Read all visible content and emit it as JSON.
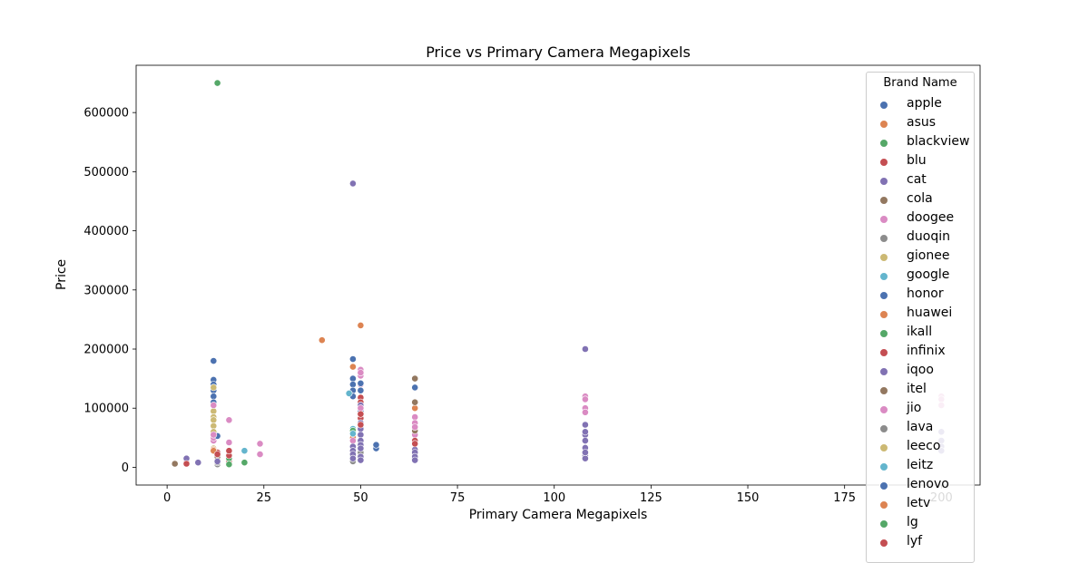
{
  "chart_data": {
    "type": "scatter",
    "title": "Price vs Primary Camera Megapixels",
    "xlabel": "Primary Camera Megapixels",
    "ylabel": "Price",
    "xlim": [
      -8,
      210
    ],
    "ylim": [
      -30000,
      680000
    ],
    "xticks": [
      0,
      25,
      50,
      75,
      100,
      125,
      150,
      175,
      200
    ],
    "yticks": [
      0,
      100000,
      200000,
      300000,
      400000,
      500000,
      600000
    ],
    "grid": false,
    "legend": {
      "title": "Brand Name",
      "placement": "top-right"
    },
    "series": [
      {
        "name": "apple",
        "color": "#4c72b0",
        "points": [
          [
            12,
            180000
          ],
          [
            12,
            148000
          ],
          [
            12,
            140000
          ],
          [
            12,
            130000
          ],
          [
            12,
            120000
          ],
          [
            12,
            110000
          ],
          [
            48,
            183000
          ],
          [
            48,
            150000
          ],
          [
            48,
            140000
          ],
          [
            48,
            130000
          ],
          [
            48,
            120000
          ]
        ]
      },
      {
        "name": "asus",
        "color": "#dd8452",
        "points": [
          [
            40,
            215000
          ],
          [
            48,
            170000
          ],
          [
            50,
            240000
          ],
          [
            64,
            100000
          ]
        ]
      },
      {
        "name": "blackview",
        "color": "#55a868",
        "points": [
          [
            13,
            650000
          ],
          [
            20,
            8000
          ],
          [
            48,
            20000
          ]
        ]
      },
      {
        "name": "blu",
        "color": "#c44e52",
        "points": [
          [
            5,
            8000
          ],
          [
            13,
            12000
          ],
          [
            16,
            10000
          ]
        ]
      },
      {
        "name": "cat",
        "color": "#8172b3",
        "points": [
          [
            48,
            480000
          ],
          [
            108,
            200000
          ],
          [
            8,
            8000
          ],
          [
            5,
            15000
          ]
        ]
      },
      {
        "name": "cola",
        "color": "#937860",
        "points": [
          [
            2,
            6000
          ],
          [
            64,
            150000
          ],
          [
            64,
            110000
          ],
          [
            50,
            20000
          ]
        ]
      },
      {
        "name": "doogee",
        "color": "#da8bc3",
        "points": [
          [
            16,
            80000
          ],
          [
            24,
            40000
          ],
          [
            24,
            22000
          ],
          [
            12,
            45000
          ],
          [
            50,
            165000
          ],
          [
            50,
            155000
          ],
          [
            50,
            140000
          ],
          [
            108,
            120000
          ],
          [
            108,
            115000
          ],
          [
            108,
            100000
          ],
          [
            108,
            93000
          ],
          [
            64,
            85000
          ],
          [
            64,
            75000
          ],
          [
            64,
            55000
          ]
        ]
      },
      {
        "name": "duoqin",
        "color": "#8c8c8c",
        "points": [
          [
            13,
            5000
          ],
          [
            48,
            10000
          ]
        ]
      },
      {
        "name": "gionee",
        "color": "#ccb974",
        "points": [
          [
            12,
            95000
          ],
          [
            12,
            85000
          ],
          [
            12,
            80000
          ],
          [
            12,
            70000
          ],
          [
            12,
            32000
          ]
        ]
      },
      {
        "name": "google",
        "color": "#64b5cd",
        "points": [
          [
            20,
            28000
          ],
          [
            47,
            125000
          ],
          [
            48,
            65000
          ]
        ]
      },
      {
        "name": "honor",
        "color": "#4c72b0",
        "points": [
          [
            50,
            142000
          ],
          [
            50,
            130000
          ],
          [
            54,
            32000
          ],
          [
            64,
            135000
          ]
        ]
      },
      {
        "name": "huawei",
        "color": "#dd8452",
        "points": [
          [
            12,
            30000
          ],
          [
            48,
            50000
          ]
        ]
      },
      {
        "name": "ikall",
        "color": "#55a868",
        "points": [
          [
            48,
            62000
          ],
          [
            16,
            15000
          ]
        ]
      },
      {
        "name": "infinix",
        "color": "#c44e52",
        "points": [
          [
            13,
            25000
          ],
          [
            16,
            20000
          ],
          [
            50,
            118000
          ],
          [
            50,
            110000
          ],
          [
            50,
            83000
          ],
          [
            64,
            45000
          ]
        ]
      },
      {
        "name": "iqoo",
        "color": "#8172b3",
        "points": [
          [
            50,
            105000
          ],
          [
            50,
            75000
          ],
          [
            64,
            30000
          ],
          [
            108,
            72000
          ],
          [
            108,
            55000
          ],
          [
            108,
            45000
          ],
          [
            108,
            33000
          ],
          [
            108,
            20000
          ],
          [
            108,
            15000
          ]
        ]
      },
      {
        "name": "itel",
        "color": "#937860",
        "points": [
          [
            64,
            62000
          ],
          [
            13,
            18000
          ]
        ]
      },
      {
        "name": "jio",
        "color": "#da8bc3",
        "points": [
          [
            12,
            50000
          ],
          [
            12,
            105000
          ],
          [
            48,
            45000
          ],
          [
            50,
            160000
          ]
        ]
      },
      {
        "name": "lava",
        "color": "#8c8c8c",
        "points": [
          [
            13,
            8000
          ],
          [
            50,
            25000
          ],
          [
            64,
            20000
          ]
        ]
      },
      {
        "name": "leeco",
        "color": "#ccb974",
        "points": [
          [
            12,
            135000
          ],
          [
            12,
            60000
          ]
        ]
      },
      {
        "name": "leitz",
        "color": "#64b5cd",
        "points": [
          [
            48,
            57000
          ]
        ]
      },
      {
        "name": "lenovo",
        "color": "#4c72b0",
        "points": [
          [
            13,
            53000
          ],
          [
            50,
            95000
          ],
          [
            54,
            38000
          ],
          [
            64,
            15000
          ]
        ]
      },
      {
        "name": "letv",
        "color": "#dd8452",
        "points": [
          [
            12,
            28000
          ]
        ]
      },
      {
        "name": "lg",
        "color": "#55a868",
        "points": [
          [
            16,
            5000
          ]
        ]
      },
      {
        "name": "lyf",
        "color": "#c44e52",
        "points": [
          [
            5,
            6000
          ],
          [
            13,
            22000
          ]
        ]
      },
      {
        "name": "",
        "color": "#8172b3",
        "points": [
          [
            48,
            35000
          ],
          [
            48,
            28000
          ],
          [
            48,
            22000
          ],
          [
            48,
            15000
          ],
          [
            50,
            65000
          ],
          [
            50,
            55000
          ],
          [
            50,
            45000
          ],
          [
            50,
            38000
          ],
          [
            50,
            32000
          ],
          [
            50,
            18000
          ],
          [
            50,
            12000
          ],
          [
            64,
            25000
          ],
          [
            64,
            18000
          ],
          [
            64,
            12000
          ],
          [
            108,
            60000
          ],
          [
            108,
            25000
          ],
          [
            13,
            10000
          ],
          [
            200,
            60000
          ],
          [
            200,
            45000
          ],
          [
            200,
            35000
          ],
          [
            200,
            28000
          ]
        ]
      },
      {
        "name": "",
        "color": "#da8bc3",
        "points": [
          [
            200,
            120000
          ],
          [
            200,
            115000
          ],
          [
            200,
            105000
          ],
          [
            50,
            100000
          ],
          [
            64,
            68000
          ],
          [
            12,
            55000
          ],
          [
            16,
            42000
          ]
        ]
      },
      {
        "name": "",
        "color": "#c44e52",
        "points": [
          [
            50,
            90000
          ],
          [
            50,
            72000
          ],
          [
            64,
            40000
          ],
          [
            16,
            28000
          ]
        ]
      }
    ]
  }
}
